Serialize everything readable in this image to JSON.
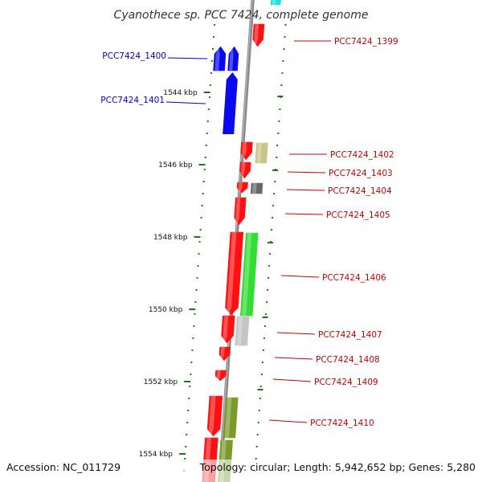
{
  "title": "Cyanothece sp. PCC 7424, complete genome",
  "footer": {
    "accession": "Accession: NC_011729",
    "stats": "Topology: circular; Length: 5,942,652 bp; Genes: 5,280"
  },
  "colors": {
    "backbone": "#8a8a8a",
    "tick": "#1a7a1a",
    "label_blue": "#0000cc",
    "label_red": "#cc0000",
    "red": "#ff1010",
    "blue": "#0a0aee",
    "cyan": "#22dddd",
    "green": "#33dd33",
    "olive": "#7a9a2a",
    "tan": "#c8c48a",
    "dark_gray": "#666666",
    "light_gray": "#c4c4c4"
  },
  "scale_labels": [
    "1544 kbp",
    "1546 kbp",
    "1548 kbp",
    "1550 kbp",
    "1552 kbp",
    "1554 kbp"
  ],
  "gene_labels": [
    {
      "id": "PCC7424_1399",
      "side": "right",
      "color": "label_red"
    },
    {
      "id": "PCC7424_1400",
      "side": "left",
      "color": "label_blue"
    },
    {
      "id": "PCC7424_1401",
      "side": "left",
      "color": "label_blue"
    },
    {
      "id": "PCC7424_1402",
      "side": "right",
      "color": "label_red"
    },
    {
      "id": "PCC7424_1403",
      "side": "right",
      "color": "label_red"
    },
    {
      "id": "PCC7424_1404",
      "side": "right",
      "color": "label_red"
    },
    {
      "id": "PCC7424_1405",
      "side": "right",
      "color": "label_red"
    },
    {
      "id": "PCC7424_1406",
      "side": "right",
      "color": "label_red"
    },
    {
      "id": "PCC7424_1407",
      "side": "right",
      "color": "label_red"
    },
    {
      "id": "PCC7424_1408",
      "side": "right",
      "color": "label_red"
    },
    {
      "id": "PCC7424_1409",
      "side": "right",
      "color": "label_red"
    },
    {
      "id": "PCC7424_1410",
      "side": "right",
      "color": "label_red"
    }
  ],
  "features": [
    {
      "name": "gene-feature",
      "color": "red",
      "strand": "fwd"
    },
    {
      "name": "gene-feature",
      "color": "cyan",
      "strand": "fwd"
    },
    {
      "name": "gene-feature",
      "color": "blue",
      "strand": "rev"
    },
    {
      "name": "gene-feature",
      "color": "blue",
      "strand": "rev"
    },
    {
      "name": "gene-feature",
      "color": "red",
      "strand": "fwd"
    },
    {
      "name": "gene-feature",
      "color": "tan",
      "strand": "fwd"
    },
    {
      "name": "gene-feature",
      "color": "red",
      "strand": "fwd"
    },
    {
      "name": "gene-feature",
      "color": "red",
      "strand": "fwd"
    },
    {
      "name": "gene-feature",
      "color": "dark_gray",
      "strand": "fwd"
    },
    {
      "name": "gene-feature",
      "color": "red",
      "strand": "fwd"
    },
    {
      "name": "gene-feature",
      "color": "red",
      "strand": "fwd"
    },
    {
      "name": "gene-feature",
      "color": "green",
      "strand": "fwd"
    },
    {
      "name": "gene-feature",
      "color": "red",
      "strand": "fwd"
    },
    {
      "name": "gene-feature",
      "color": "light_gray",
      "strand": "fwd"
    },
    {
      "name": "gene-feature",
      "color": "red",
      "strand": "fwd"
    },
    {
      "name": "gene-feature",
      "color": "red",
      "strand": "fwd"
    },
    {
      "name": "gene-feature",
      "color": "red",
      "strand": "fwd"
    },
    {
      "name": "gene-feature",
      "color": "olive",
      "strand": "fwd"
    },
    {
      "name": "gene-feature",
      "color": "red",
      "strand": "fwd"
    },
    {
      "name": "gene-feature",
      "color": "olive",
      "strand": "fwd"
    }
  ]
}
